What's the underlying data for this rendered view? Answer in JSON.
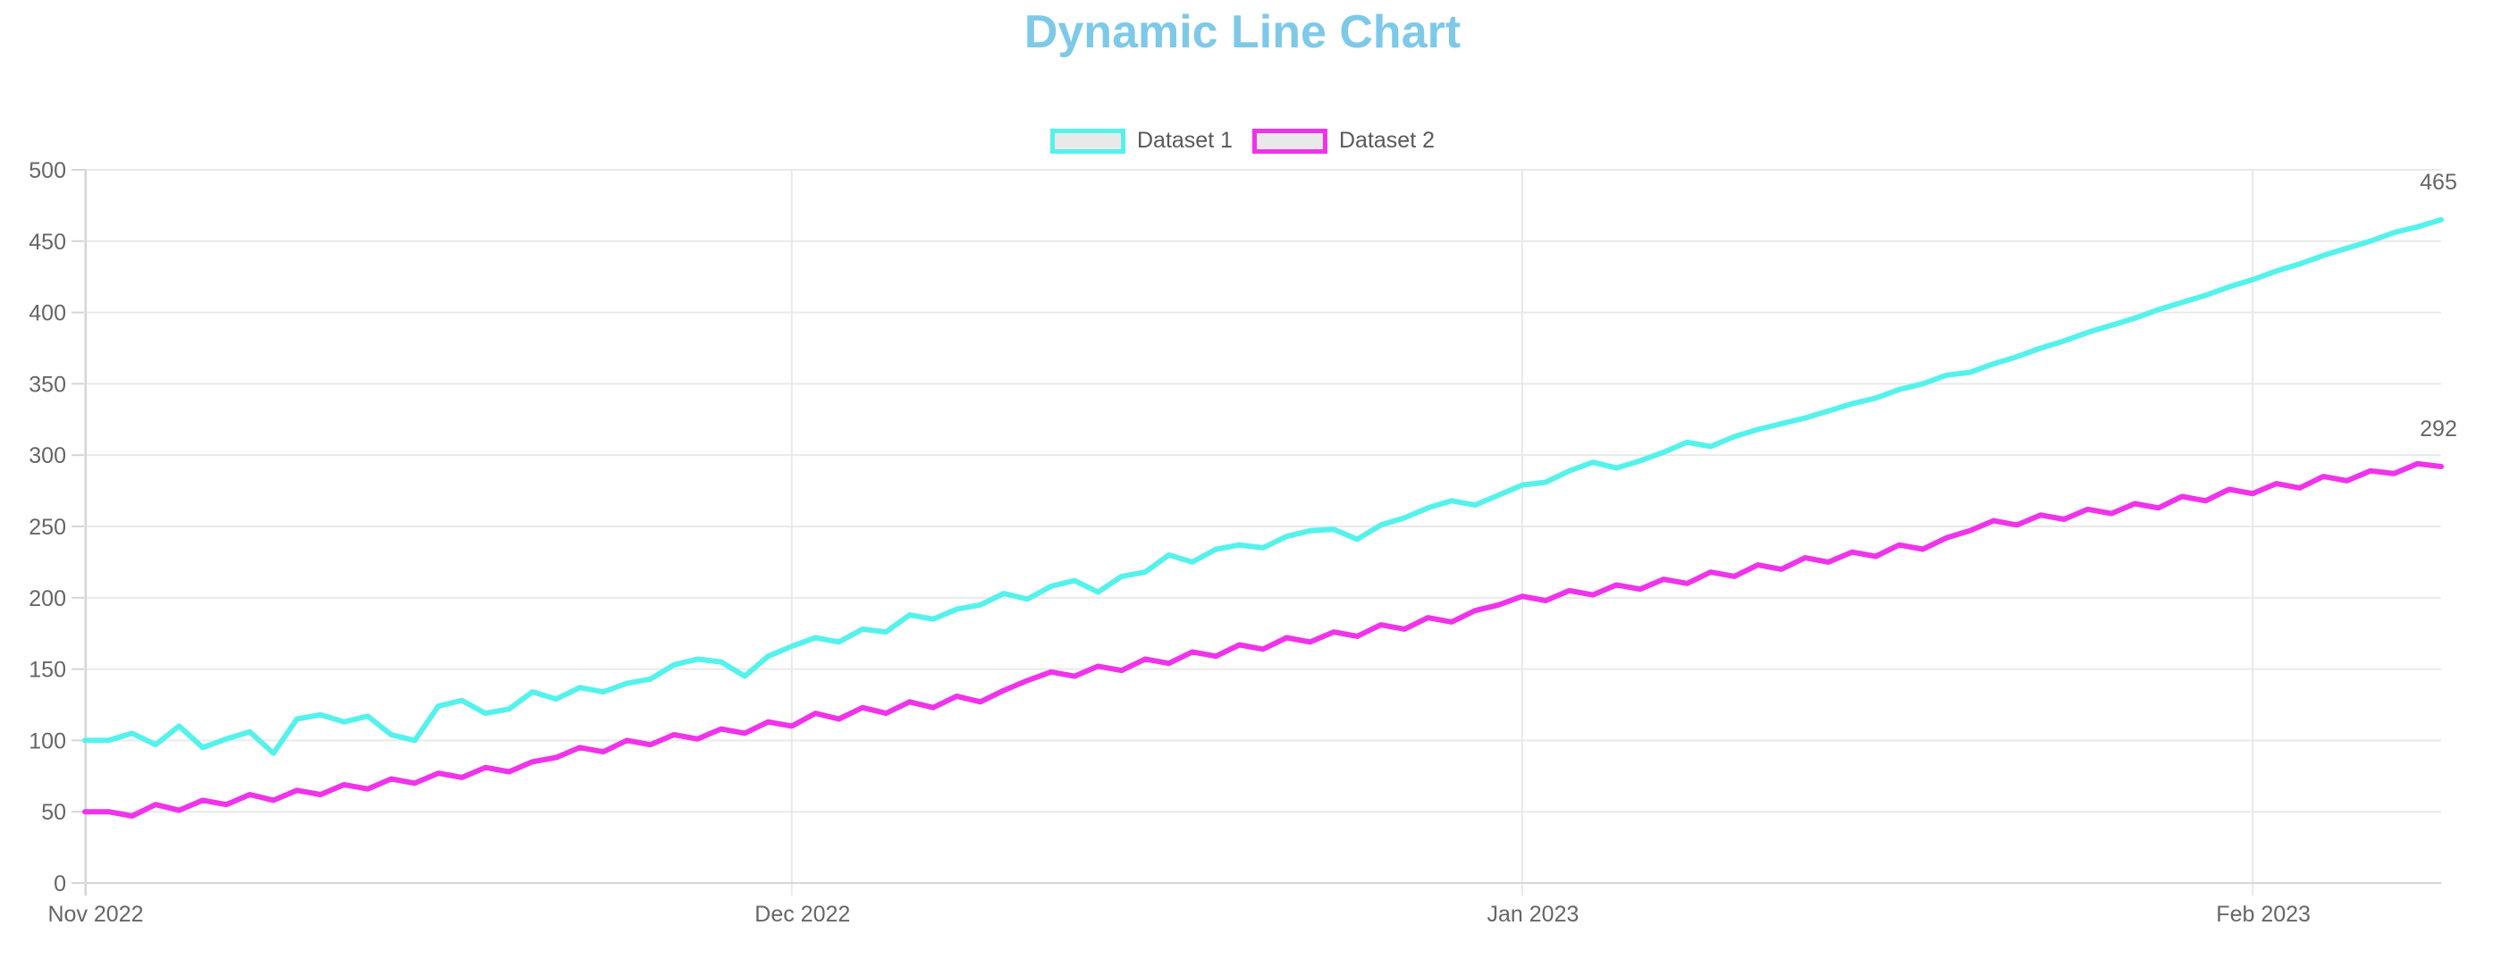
{
  "title": "Dynamic Line Chart",
  "title_color": "#7EC9E8",
  "chart_data": {
    "type": "line",
    "title": "Dynamic Line Chart",
    "legend_position": "top",
    "grid": true,
    "x_axis": {
      "type": "time",
      "tick_labels": [
        "Nov 2022",
        "Dec 2022",
        "Jan 2023",
        "Feb 2023"
      ],
      "tick_day_indices": [
        0,
        30,
        61,
        92
      ],
      "total_points": 101
    },
    "y_axis": {
      "min": 0,
      "max": 500,
      "tick_step": 50
    },
    "colors": {
      "grid_line": "#E9E9E9",
      "axis_border": "#D6D6D6",
      "tick_text": "#666666",
      "legend_swatch_fill": "#E9E9E9",
      "end_label_text": "#666666"
    },
    "series": [
      {
        "name": "Dataset 1",
        "color": "#55F2EC",
        "end_label": "465",
        "values": [
          100,
          100,
          105,
          97,
          110,
          95,
          101,
          106,
          91,
          115,
          118,
          113,
          117,
          104,
          100,
          124,
          128,
          119,
          122,
          134,
          129,
          137,
          134,
          140,
          143,
          153,
          157,
          155,
          145,
          159,
          166,
          172,
          169,
          178,
          176,
          188,
          185,
          192,
          195,
          203,
          199,
          208,
          212,
          204,
          215,
          218,
          230,
          225,
          234,
          237,
          235,
          243,
          247,
          248,
          241,
          251,
          256,
          263,
          268,
          265,
          272,
          279,
          281,
          289,
          295,
          291,
          296,
          302,
          309,
          306,
          313,
          318,
          322,
          326,
          331,
          336,
          340,
          346,
          350,
          356,
          358,
          364,
          369,
          375,
          380,
          386,
          391,
          396,
          402,
          407,
          412,
          418,
          423,
          429,
          434,
          440,
          445,
          450,
          456,
          460,
          465
        ]
      },
      {
        "name": "Dataset 2",
        "color": "#F033EA",
        "end_label": "292",
        "values": [
          50,
          50,
          47,
          55,
          51,
          58,
          55,
          62,
          58,
          65,
          62,
          69,
          66,
          73,
          70,
          77,
          74,
          81,
          78,
          85,
          88,
          95,
          92,
          100,
          97,
          104,
          101,
          108,
          105,
          113,
          110,
          119,
          115,
          123,
          119,
          127,
          123,
          131,
          127,
          135,
          142,
          148,
          145,
          152,
          149,
          157,
          154,
          162,
          159,
          167,
          164,
          172,
          169,
          176,
          173,
          181,
          178,
          186,
          183,
          191,
          195,
          201,
          198,
          205,
          202,
          209,
          206,
          213,
          210,
          218,
          215,
          223,
          220,
          228,
          225,
          232,
          229,
          237,
          234,
          242,
          247,
          254,
          251,
          258,
          255,
          262,
          259,
          266,
          263,
          271,
          268,
          276,
          273,
          280,
          277,
          285,
          282,
          289,
          287,
          294,
          292
        ]
      }
    ]
  }
}
